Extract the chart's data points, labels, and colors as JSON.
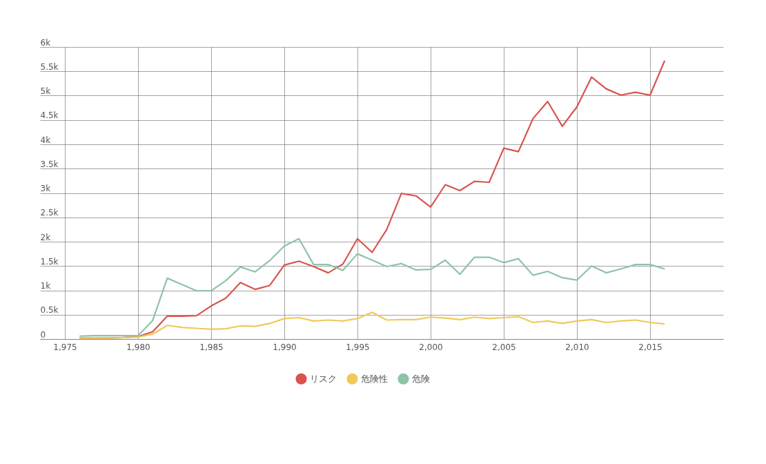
{
  "chart_data": {
    "type": "line",
    "x": [
      1976,
      1977,
      1978,
      1979,
      1980,
      1981,
      1982,
      1983,
      1984,
      1985,
      1986,
      1987,
      1988,
      1989,
      1990,
      1991,
      1992,
      1993,
      1994,
      1995,
      1996,
      1997,
      1998,
      1999,
      2000,
      2001,
      2002,
      2003,
      2004,
      2005,
      2006,
      2007,
      2008,
      2009,
      2010,
      2011,
      2012,
      2013,
      2014,
      2015,
      2016
    ],
    "series": [
      {
        "name": "リスク",
        "color": "#d9534f",
        "values": [
          20,
          20,
          20,
          30,
          50,
          150,
          470,
          470,
          480,
          680,
          840,
          1160,
          1020,
          1100,
          1520,
          1600,
          1490,
          1360,
          1540,
          2060,
          1780,
          2250,
          2990,
          2940,
          2710,
          3170,
          3050,
          3240,
          3220,
          3920,
          3850,
          4530,
          4880,
          4370,
          4770,
          5380,
          5140,
          5010,
          5070,
          5010,
          5720
        ]
      },
      {
        "name": "危険性",
        "color": "#f0c95a",
        "values": [
          20,
          20,
          20,
          30,
          40,
          100,
          280,
          240,
          220,
          200,
          210,
          270,
          260,
          320,
          420,
          440,
          370,
          390,
          370,
          420,
          550,
          390,
          400,
          400,
          450,
          430,
          400,
          450,
          420,
          440,
          460,
          340,
          370,
          320,
          370,
          400,
          340,
          370,
          390,
          340,
          310
        ]
      },
      {
        "name": "危険",
        "color": "#8ec3a7",
        "values": [
          60,
          70,
          70,
          70,
          70,
          380,
          1250,
          1120,
          990,
          990,
          1200,
          1480,
          1380,
          1610,
          1910,
          2060,
          1530,
          1530,
          1410,
          1750,
          1620,
          1490,
          1550,
          1420,
          1430,
          1620,
          1330,
          1680,
          1680,
          1570,
          1650,
          1310,
          1390,
          1260,
          1210,
          1500,
          1360,
          1440,
          1530,
          1530,
          1440
        ]
      }
    ],
    "xlim": [
      1973.3,
      2020
    ],
    "xticks": [
      {
        "value": 1975,
        "label": "1,975"
      },
      {
        "value": 1980,
        "label": "1,980"
      },
      {
        "value": 1985,
        "label": "1,985"
      },
      {
        "value": 1990,
        "label": "1,990"
      },
      {
        "value": 1995,
        "label": "1,995"
      },
      {
        "value": 2000,
        "label": "2,000"
      },
      {
        "value": 2005,
        "label": "2,005"
      },
      {
        "value": 2010,
        "label": "2,010"
      },
      {
        "value": 2015,
        "label": "2,015"
      }
    ],
    "ylim": [
      0,
      6000
    ],
    "yticks": [
      0,
      {
        "value": 500,
        "label": "0.5k"
      },
      {
        "value": 1000,
        "label": "1k"
      },
      {
        "value": 1500,
        "label": "1.5k"
      },
      {
        "value": 2000,
        "label": "2k"
      },
      {
        "value": 2500,
        "label": "2.5k"
      },
      {
        "value": 3000,
        "label": "3k"
      },
      {
        "value": 3500,
        "label": "3.5k"
      },
      {
        "value": 4000,
        "label": "4k"
      },
      {
        "value": 4500,
        "label": "4.5k"
      },
      {
        "value": 5000,
        "label": "5k"
      },
      {
        "value": 5500,
        "label": "5.5k"
      },
      {
        "value": 6000,
        "label": "6k"
      }
    ],
    "grid": true,
    "legend": "bottom",
    "marker": "none",
    "line_style": "solid"
  }
}
